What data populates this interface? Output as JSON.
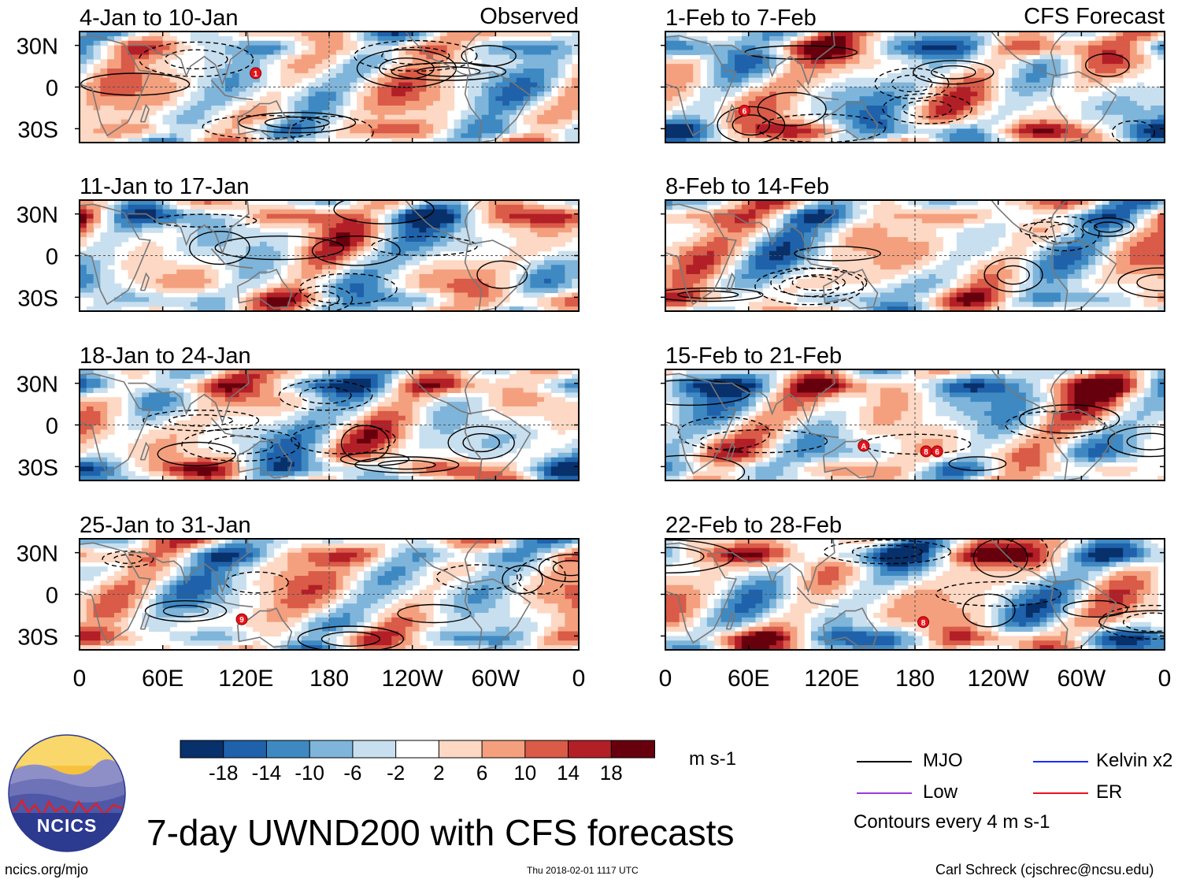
{
  "chart_data": {
    "type": "heatmap",
    "title": "7-day UWND200 with CFS forecasts",
    "variable": "200 hPa zonal wind (UWND200), 7-day mean",
    "units": "m s-1",
    "x_tick_labels": [
      "0",
      "60E",
      "120E",
      "180",
      "120W",
      "60W",
      "0"
    ],
    "y_tick_labels": [
      "30N",
      "0",
      "30S"
    ],
    "xlim_deg_east": [
      0,
      360
    ],
    "ylim_deg": [
      -40,
      40
    ],
    "columns": [
      {
        "header": "Observed",
        "panels": [
          {
            "label": "4-Jan to 10-Jan",
            "storms": [
              "1"
            ]
          },
          {
            "label": "11-Jan to 17-Jan",
            "storms": []
          },
          {
            "label": "18-Jan to 24-Jan",
            "storms": []
          },
          {
            "label": "25-Jan to 31-Jan",
            "storms": [
              "9"
            ]
          }
        ]
      },
      {
        "header": "CFS Forecast",
        "panels": [
          {
            "label": "1-Feb to 7-Feb",
            "storms": [
              "6"
            ]
          },
          {
            "label": "8-Feb to 14-Feb",
            "storms": []
          },
          {
            "label": "15-Feb to 21-Feb",
            "storms": [
              "A",
              "8",
              "6"
            ]
          },
          {
            "label": "22-Feb to 28-Feb",
            "storms": [
              "8"
            ]
          }
        ]
      }
    ],
    "colorbar": {
      "tick_labels": [
        "-18",
        "-14",
        "-10",
        "-6",
        "-2",
        "2",
        "6",
        "10",
        "14",
        "18"
      ],
      "colors": [
        "#08306b",
        "#1f62ab",
        "#3f89c3",
        "#7fb5da",
        "#c8dfef",
        "#ffffff",
        "#fdd8c4",
        "#f4a07e",
        "#d95b48",
        "#b31f27",
        "#67000d"
      ]
    },
    "contour_legend": [
      {
        "label": "MJO",
        "color": "#000000"
      },
      {
        "label": "Kelvin x2",
        "color": "#1a2cff"
      },
      {
        "label": "Low",
        "color": "#9b3bd8"
      },
      {
        "label": "ER",
        "color": "#e8131b"
      }
    ],
    "contour_note": "Contours every 4 m s-1"
  },
  "branding": {
    "logo_text": "NCICS",
    "site": "ncics.org/mjo",
    "timestamp": "Thu 2018-02-01 1117 UTC",
    "author": "Carl Schreck (cjschrec@ncsu.edu)"
  }
}
